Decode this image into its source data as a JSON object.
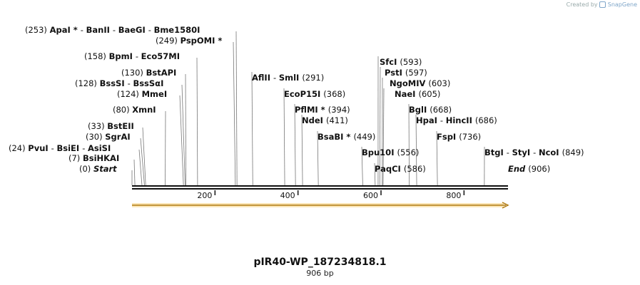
{
  "credit": {
    "prefix": "Created by",
    "brand": "SnapGene",
    "icon": "snapgene-logo-icon"
  },
  "plasmid": {
    "name": "pIR40-WP_187234818.1",
    "size_label": "906 bp",
    "length": 906
  },
  "axis": {
    "ticks": [
      200,
      400,
      600,
      800
    ]
  },
  "feature": {
    "start": 1,
    "end": 906,
    "color": "#f5c243",
    "direction": "forward"
  },
  "labels": [
    {
      "row": 0,
      "pos": 253,
      "items": [
        {
          "name": "ApaI *",
          "pos": 253
        },
        {
          "sep": "-"
        },
        {
          "name": "BanII",
          "pos": 253
        },
        {
          "sep": "-"
        },
        {
          "name": "BaeGI",
          "pos": 253
        },
        {
          "sep": "-"
        },
        {
          "name": "Bme1580I",
          "pos": 253
        }
      ],
      "num": "(253)",
      "num_side": "left"
    },
    {
      "row": 1,
      "pos": 249,
      "items": [
        {
          "name": "PspOMI *",
          "pos": 249
        }
      ],
      "num": "(249)",
      "num_side": "left"
    },
    {
      "row": 2,
      "pos": 158,
      "items": [
        {
          "name": "BpmI",
          "pos": 158
        },
        {
          "sep": "-"
        },
        {
          "name": "Eco57MI",
          "pos": 158
        }
      ],
      "num": "(158)",
      "num_side": "left"
    },
    {
      "row": 3,
      "pos": 130,
      "items": [
        {
          "name": "BstAPI",
          "pos": 130
        }
      ],
      "num": "(130)",
      "num_side": "left"
    },
    {
      "row": 4,
      "pos": 128,
      "items": [
        {
          "name": "BssSI",
          "pos": 128
        },
        {
          "sep": "-"
        },
        {
          "name": "BssSαI",
          "pos": 128
        }
      ],
      "num": "(128)",
      "num_side": "left"
    },
    {
      "row": 5,
      "pos": 124,
      "items": [
        {
          "name": "MmeI",
          "pos": 124
        }
      ],
      "num": "(124)",
      "num_side": "left"
    },
    {
      "row": 6,
      "pos": 80,
      "items": [
        {
          "name": "XmnI",
          "pos": 80
        }
      ],
      "num": "(80)",
      "num_side": "left"
    },
    {
      "row": 7,
      "pos": 33,
      "items": [
        {
          "name": "BstEII",
          "pos": 33
        }
      ],
      "num": "(33)",
      "num_side": "left"
    },
    {
      "row": 8,
      "pos": 30,
      "items": [
        {
          "name": "SgrAI",
          "pos": 30
        }
      ],
      "num": "(30)",
      "num_side": "left"
    },
    {
      "row": 9,
      "pos": 24,
      "items": [
        {
          "name": "PvuI",
          "pos": 24
        },
        {
          "sep": "-"
        },
        {
          "name": "BsiEI",
          "pos": 24
        },
        {
          "sep": "-"
        },
        {
          "name": "AsiSI",
          "pos": 24
        }
      ],
      "num": "(24)",
      "num_side": "left"
    },
    {
      "row": 10,
      "pos": 7,
      "items": [
        {
          "name": "BsiHKAI",
          "pos": 7
        }
      ],
      "num": "(7)",
      "num_side": "left"
    },
    {
      "row": 11,
      "pos": 0,
      "items": [
        {
          "name": "Start",
          "pos": 0,
          "italic": true
        }
      ],
      "num": "(0)",
      "num_side": "left"
    }
  ],
  "right_labels": [
    {
      "name": "AflII",
      "sep": "-",
      "name2": "SmlI",
      "num": "(291)",
      "pos": 291
    },
    {
      "name": "EcoP15I",
      "num": "(368)",
      "pos": 368
    },
    {
      "name": "PflMI *",
      "num": "(394)",
      "pos": 394
    },
    {
      "name": "NdeI",
      "num": "(411)",
      "pos": 411
    },
    {
      "name": "BsaBI *",
      "num": "(449)",
      "pos": 449
    },
    {
      "name": "SfcI",
      "num": "(593)",
      "pos": 593
    },
    {
      "name": "PstI",
      "num": "(597)",
      "pos": 597
    },
    {
      "name": "NgoMIV",
      "num": "(603)",
      "pos": 603
    },
    {
      "name": "NaeI",
      "num": "(605)",
      "pos": 605
    },
    {
      "name": "BglI",
      "num": "(668)",
      "pos": 668
    },
    {
      "name": "HpaI",
      "sep": "-",
      "name2": "HincII",
      "num": "(686)",
      "pos": 686
    },
    {
      "name": "FspI",
      "num": "(736)",
      "pos": 736
    },
    {
      "name": "Bpu10I",
      "num": "(556)",
      "pos": 556
    },
    {
      "name": "PaqCI",
      "num": "(586)",
      "pos": 586
    },
    {
      "name": "BtgI",
      "sep": "-",
      "name2": "StyI",
      "sep2": "-",
      "name3": "NcoI",
      "num": "(849)",
      "pos": 849
    },
    {
      "name": "End",
      "num": "(906)",
      "pos": 906,
      "italic": true
    }
  ]
}
